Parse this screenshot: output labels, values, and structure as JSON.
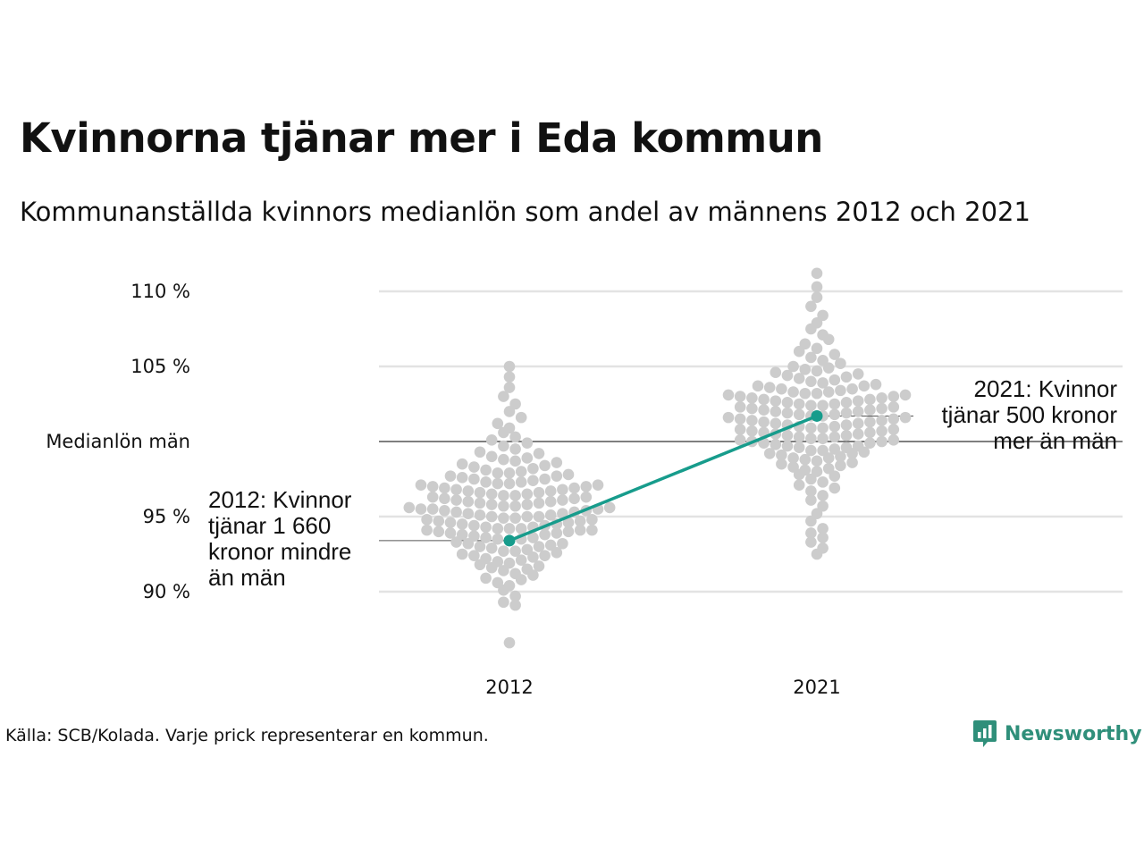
{
  "title": "Kvinnorna tjänar mer i Eda kommun",
  "subtitle": "Kommunanställda kvinnors medianlön som andel av männens 2012 och 2021",
  "footer": "Källa: SCB/Kolada. Varje prick representerar en kommun.",
  "brand": "Newsworthy",
  "colors": {
    "highlight": "#179c8c",
    "dots": "#cccccc",
    "grid": "#e3e3e3",
    "reference": "#333333",
    "brand": "#2f8f7a"
  },
  "chart_data": {
    "type": "scatter",
    "subtype": "beeswarm",
    "categories": [
      "2012",
      "2021"
    ],
    "y_ticks": [
      {
        "value": 90,
        "label": "90 %"
      },
      {
        "value": 95,
        "label": "95 %"
      },
      {
        "value": 100,
        "label": "Medianlön män"
      },
      {
        "value": 105,
        "label": "105 %"
      },
      {
        "value": 110,
        "label": "110 %"
      }
    ],
    "ylim": [
      86,
      111.5
    ],
    "reference_line": 100,
    "grid": true,
    "highlight": {
      "name": "Eda kommun",
      "points": [
        {
          "x": "2012",
          "y": 93.4
        },
        {
          "x": "2021",
          "y": 101.7
        }
      ]
    },
    "annotations": [
      {
        "x": "2012",
        "lines": [
          "2012: Kvinnor",
          "tjänar 1 660",
          "kronor mindre",
          "än män"
        ]
      },
      {
        "x": "2021",
        "lines": [
          "2021: Kvinnor",
          "tjänar 500 kronor",
          "mer än män"
        ]
      }
    ],
    "swarms": [
      {
        "x": "2012",
        "values": [
          86.6,
          89.1,
          89.3,
          89.7,
          90.1,
          90.4,
          90.6,
          90.8,
          90.9,
          91.1,
          91.2,
          91.4,
          91.5,
          91.6,
          91.7,
          91.8,
          91.9,
          92.0,
          92.1,
          92.2,
          92.3,
          92.4,
          92.4,
          92.5,
          92.6,
          92.7,
          92.7,
          92.8,
          92.9,
          93.0,
          93.0,
          93.1,
          93.2,
          93.2,
          93.3,
          93.4,
          93.5,
          93.5,
          93.6,
          93.6,
          93.7,
          93.8,
          93.8,
          93.9,
          93.9,
          94.0,
          94.0,
          94.1,
          94.1,
          94.1,
          94.2,
          94.2,
          94.2,
          94.3,
          94.3,
          94.4,
          94.4,
          94.5,
          94.5,
          94.6,
          94.6,
          94.7,
          94.7,
          94.8,
          94.8,
          94.9,
          94.9,
          95.0,
          95.0,
          95.0,
          95.1,
          95.1,
          95.2,
          95.2,
          95.3,
          95.3,
          95.4,
          95.4,
          95.5,
          95.5,
          95.5,
          95.6,
          95.6,
          95.7,
          95.7,
          95.8,
          95.8,
          95.9,
          95.9,
          96.0,
          96.0,
          96.1,
          96.1,
          96.2,
          96.2,
          96.3,
          96.3,
          96.4,
          96.4,
          96.5,
          96.5,
          96.6,
          96.6,
          96.7,
          96.7,
          96.8,
          96.8,
          96.9,
          96.9,
          97.0,
          97.0,
          97.1,
          97.1,
          97.2,
          97.2,
          97.3,
          97.3,
          97.4,
          97.5,
          97.5,
          97.6,
          97.7,
          97.7,
          97.8,
          97.9,
          97.9,
          98.0,
          98.1,
          98.2,
          98.3,
          98.4,
          98.5,
          98.6,
          98.7,
          98.8,
          98.9,
          99.0,
          99.2,
          99.3,
          99.5,
          99.7,
          99.9,
          100.1,
          100.3,
          100.6,
          100.9,
          101.2,
          101.6,
          102.0,
          102.5,
          103.0,
          103.6,
          104.3,
          105.0
        ]
      },
      {
        "x": "2021",
        "values": [
          92.5,
          92.9,
          93.3,
          93.6,
          93.9,
          94.2,
          94.7,
          95.2,
          95.7,
          96.1,
          96.4,
          96.7,
          96.9,
          97.1,
          97.3,
          97.5,
          97.7,
          97.8,
          98.0,
          98.1,
          98.2,
          98.3,
          98.4,
          98.5,
          98.6,
          98.7,
          98.8,
          98.9,
          98.9,
          99.0,
          99.1,
          99.2,
          99.2,
          99.3,
          99.4,
          99.4,
          99.5,
          99.6,
          99.6,
          99.7,
          99.7,
          99.8,
          99.9,
          99.9,
          100.0,
          100.0,
          100.1,
          100.1,
          100.2,
          100.2,
          100.3,
          100.3,
          100.4,
          100.4,
          100.5,
          100.5,
          100.6,
          100.6,
          100.7,
          100.7,
          100.8,
          100.8,
          100.9,
          100.9,
          101.0,
          101.0,
          101.1,
          101.1,
          101.2,
          101.2,
          101.3,
          101.3,
          101.4,
          101.4,
          101.5,
          101.5,
          101.6,
          101.6,
          101.7,
          101.7,
          101.8,
          101.8,
          101.9,
          101.9,
          102.0,
          102.0,
          102.1,
          102.1,
          102.2,
          102.2,
          102.3,
          102.3,
          102.4,
          102.4,
          102.5,
          102.5,
          102.6,
          102.6,
          102.7,
          102.7,
          102.8,
          102.8,
          102.9,
          102.9,
          103.0,
          103.0,
          103.1,
          103.1,
          103.2,
          103.2,
          103.3,
          103.3,
          103.4,
          103.5,
          103.5,
          103.6,
          103.7,
          103.7,
          103.8,
          103.9,
          104.0,
          104.1,
          104.2,
          104.3,
          104.4,
          104.5,
          104.6,
          104.7,
          104.8,
          104.9,
          105.0,
          105.2,
          105.4,
          105.6,
          105.8,
          106.0,
          106.2,
          106.5,
          106.8,
          107.1,
          107.5,
          107.9,
          108.4,
          109.0,
          109.6,
          110.3,
          111.2
        ]
      }
    ]
  }
}
